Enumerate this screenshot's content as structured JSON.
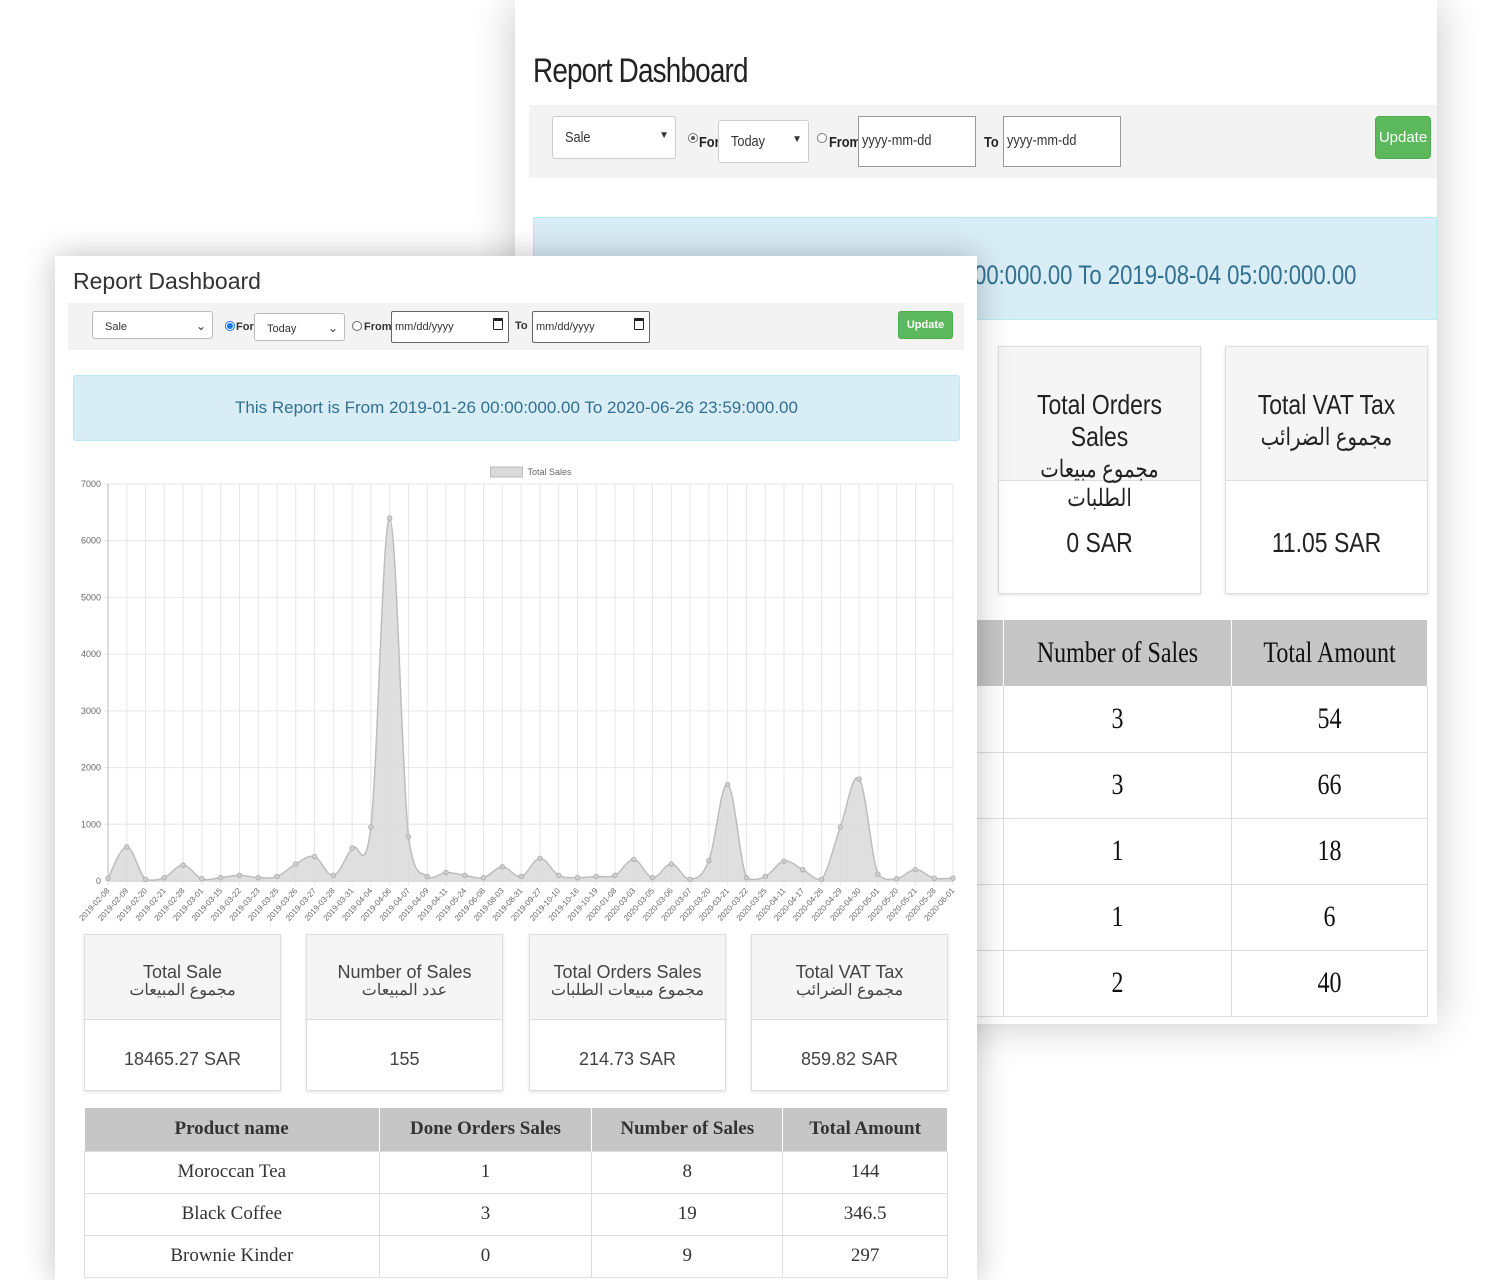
{
  "back": {
    "title": "Report Dashboard",
    "filter": {
      "type_value": "Sale",
      "for_label": "For",
      "period_value": "Today",
      "from_label": "From",
      "from_placeholder": "yyyy-mm-dd",
      "to_label": "To",
      "to_placeholder": "yyyy-mm-dd",
      "update_label": "Update"
    },
    "alert_text": "00:000.00 To 2019-08-04 05:00:000.00",
    "cards": [
      {
        "title": "Total Orders Sales",
        "title_ar": "مجموع مبيعات الطلبات",
        "value": "0 SAR"
      },
      {
        "title": "Total VAT Tax",
        "title_ar": "مجموع الضرائب",
        "value": "11.05 SAR"
      }
    ],
    "table": {
      "headers": [
        "",
        "Number of Sales",
        "Total Amount"
      ],
      "rows": [
        [
          "",
          "3",
          "54"
        ],
        [
          "",
          "3",
          "66"
        ],
        [
          "",
          "1",
          "18"
        ],
        [
          "",
          "1",
          "6"
        ],
        [
          "",
          "2",
          "40"
        ]
      ]
    }
  },
  "front": {
    "title": "Report Dashboard",
    "filter": {
      "type_value": "Sale",
      "for_label": "For",
      "period_value": "Today",
      "from_label": "From",
      "from_placeholder": "mm/dd/yyyy",
      "to_label": "To",
      "to_placeholder": "mm/dd/yyyy",
      "update_label": "Update"
    },
    "alert_text": "This Report is From 2019-01-26 00:00:000.00 To 2020-06-26 23:59:000.00",
    "cards": [
      {
        "title": "Total Sale",
        "title_ar": "مجموع المبيعات",
        "value": "18465.27 SAR"
      },
      {
        "title": "Number of Sales",
        "title_ar": "عدد المبيعات",
        "value": "155"
      },
      {
        "title": "Total Orders Sales",
        "title_ar": "مجموع مبيعات الطلبات",
        "value": "214.73 SAR"
      },
      {
        "title": "Total VAT Tax",
        "title_ar": "مجموع الضرائب",
        "value": "859.82 SAR"
      }
    ],
    "table": {
      "headers": [
        "Product name",
        "Done Orders Sales",
        "Number of Sales",
        "Total Amount"
      ],
      "rows": [
        [
          "Moroccan Tea",
          "1",
          "8",
          "144"
        ],
        [
          "Black Coffee",
          "3",
          "19",
          "346.5"
        ],
        [
          "Brownie Kinder",
          "0",
          "9",
          "297"
        ]
      ]
    }
  },
  "chart_data": {
    "type": "area",
    "legend": [
      "Total Sales"
    ],
    "legend_position": "top",
    "grid": true,
    "ylim": [
      0,
      7000
    ],
    "yticks": [
      0,
      1000,
      2000,
      3000,
      4000,
      5000,
      6000,
      7000
    ],
    "fill_color": "#d9d9d9",
    "line_color": "#bdbdbd",
    "x": [
      "2019-02-08",
      "2019-02-09",
      "2019-02-20",
      "2019-02-21",
      "2019-02-28",
      "2019-03-01",
      "2019-03-15",
      "2019-03-22",
      "2019-03-23",
      "2019-03-25",
      "2019-03-26",
      "2019-03-27",
      "2019-03-28",
      "2019-03-31",
      "2019-04-04",
      "2019-04-06",
      "2019-04-07",
      "2019-04-09",
      "2019-04-11",
      "2019-05-24",
      "2019-06-08",
      "2019-08-03",
      "2019-08-31",
      "2019-09-27",
      "2019-10-10",
      "2019-10-16",
      "2019-10-19",
      "2020-01-08",
      "2020-03-03",
      "2020-03-05",
      "2020-03-06",
      "2020-03-07",
      "2020-03-20",
      "2020-03-21",
      "2020-03-22",
      "2020-03-25",
      "2020-04-11",
      "2020-04-17",
      "2020-04-26",
      "2020-04-29",
      "2020-04-30",
      "2020-05-01",
      "2020-05-20",
      "2020-05-21",
      "2020-05-28",
      "2020-06-01"
    ],
    "series": [
      {
        "name": "Total Sales",
        "values": [
          50,
          600,
          30,
          60,
          280,
          40,
          60,
          100,
          60,
          80,
          300,
          430,
          100,
          580,
          950,
          6400,
          780,
          80,
          150,
          100,
          60,
          250,
          80,
          400,
          100,
          60,
          80,
          100,
          380,
          60,
          300,
          30,
          360,
          1700,
          60,
          80,
          350,
          200,
          30,
          950,
          1800,
          120,
          40,
          200,
          50,
          50
        ]
      }
    ]
  }
}
